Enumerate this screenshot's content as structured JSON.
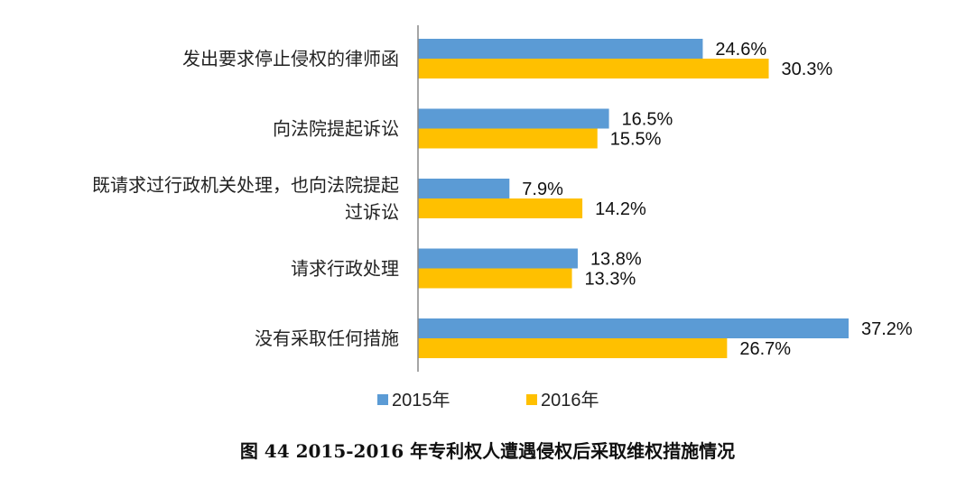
{
  "chart_data": {
    "type": "bar",
    "orientation": "horizontal",
    "categories": [
      "发出要求停止侵权的律师函",
      "向法院提起诉讼",
      "既请求过行政机关处理，也向法院提起过诉讼",
      "请求行政处理",
      "没有采取任何措施"
    ],
    "category_label_lines": [
      [
        "发出要求停止侵权的律师函"
      ],
      [
        "向法院提起诉讼"
      ],
      [
        "既请求过行政机关处理，也向法院提起",
        "过诉讼"
      ],
      [
        "请求行政处理"
      ],
      [
        "没有采取任何措施"
      ]
    ],
    "series": [
      {
        "name": "2015年",
        "values": [
          24.6,
          16.5,
          7.9,
          13.8,
          37.2
        ],
        "labels": [
          "24.6%",
          "16.5%",
          "7.9%",
          "13.8%",
          "37.2%"
        ],
        "color": "#5B9BD5"
      },
      {
        "name": "2016年",
        "values": [
          30.3,
          15.5,
          14.2,
          13.3,
          26.7
        ],
        "labels": [
          "30.3%",
          "15.5%",
          "14.2%",
          "13.3%",
          "26.7%"
        ],
        "color": "#FFC000"
      }
    ],
    "xlim": [
      0,
      40
    ],
    "grid": false,
    "legend_position": "bottom"
  },
  "caption": "图 44 2015-2016 年专利权人遭遇侵权后采取维权措施情况"
}
